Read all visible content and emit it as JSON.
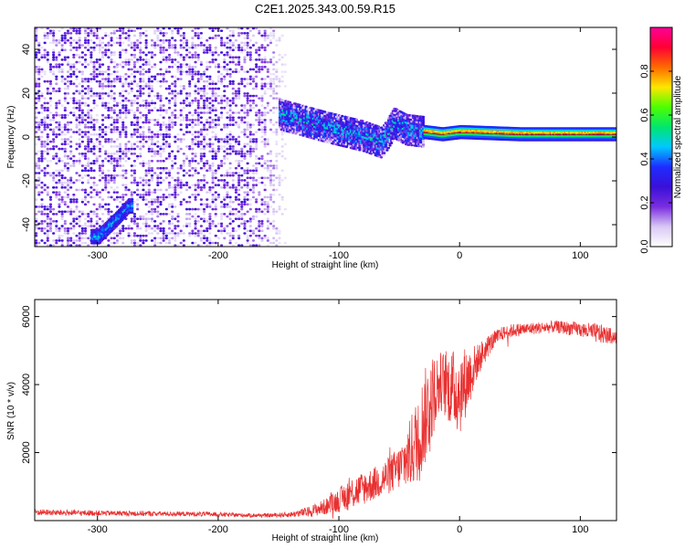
{
  "figure_title": "C2E1.2025.343.00.59.R15",
  "chart_data": [
    {
      "type": "heatmap",
      "title": "",
      "xlabel": "Height of straight line (km)",
      "ylabel": "Frequency (Hz)",
      "xlim": [
        -352,
        130
      ],
      "ylim": [
        -50,
        50
      ],
      "xticks": [
        -300,
        -200,
        -100,
        0,
        100
      ],
      "yticks": [
        -40,
        -20,
        0,
        20,
        40
      ],
      "colorbar": {
        "label": "Normalized spectral amplitude",
        "range": [
          0.0,
          1.0
        ],
        "ticks": [
          0.0,
          0.2,
          0.4,
          0.6,
          0.8
        ],
        "tick_labels": [
          "0.0",
          "0.2",
          "0.4",
          "0.6",
          "0.8"
        ],
        "colormap": [
          "#ffffff",
          "#d8c8f4",
          "#7a2de0",
          "#3a10d8",
          "#1e2cff",
          "#00c8ff",
          "#00e66e",
          "#4cff00",
          "#ffe600",
          "#ff6a00",
          "#ff0033",
          "#ff0099"
        ]
      },
      "features": [
        {
          "description": "broadband noise",
          "x_range": [
            -352,
            -140
          ],
          "freq_range": [
            -50,
            50
          ],
          "amplitude": 0.15
        },
        {
          "description": "signal track",
          "points": [
            [
              -150,
              10
            ],
            [
              -130,
              7
            ],
            [
              -110,
              4
            ],
            [
              -95,
              2
            ],
            [
              -80,
              0
            ],
            [
              -65,
              -3
            ],
            [
              -55,
              6
            ],
            [
              -45,
              3
            ],
            [
              -30,
              2
            ],
            [
              -15,
              1
            ],
            [
              0,
              2
            ],
            [
              50,
              1
            ],
            [
              100,
              1
            ],
            [
              130,
              1
            ]
          ]
        },
        {
          "description": "low-frequency blob",
          "points": [
            [
              -300,
              -46
            ],
            [
              -285,
              -38
            ],
            [
              -275,
              -32
            ]
          ]
        }
      ]
    },
    {
      "type": "line",
      "title": "",
      "xlabel": "Height of straight line (km)",
      "ylabel": "SNR (10 * v/v)",
      "xlim": [
        -352,
        130
      ],
      "ylim": [
        0,
        6500
      ],
      "xticks": [
        -300,
        -200,
        -100,
        0,
        100
      ],
      "yticks": [
        2000,
        4000,
        6000
      ],
      "series": [
        {
          "name": "SNR",
          "color": "#e83030",
          "x": [
            -352,
            -330,
            -300,
            -270,
            -240,
            -210,
            -180,
            -160,
            -140,
            -125,
            -110,
            -100,
            -90,
            -80,
            -70,
            -60,
            -50,
            -42,
            -35,
            -28,
            -22,
            -15,
            -8,
            0,
            8,
            15,
            25,
            35,
            45,
            60,
            80,
            100,
            115,
            130
          ],
          "baseline": [
            250,
            230,
            220,
            210,
            200,
            190,
            160,
            150,
            180,
            260,
            420,
            600,
            800,
            950,
            1100,
            1300,
            1550,
            1900,
            2400,
            3100,
            3700,
            4100,
            3900,
            3800,
            4250,
            4700,
            5200,
            5500,
            5600,
            5650,
            5700,
            5620,
            5500,
            5400
          ],
          "noise": [
            90,
            90,
            80,
            80,
            70,
            70,
            60,
            60,
            80,
            150,
            250,
            350,
            500,
            500,
            500,
            550,
            650,
            1000,
            1300,
            1450,
            1200,
            900,
            1100,
            1300,
            900,
            500,
            300,
            200,
            200,
            180,
            180,
            220,
            300,
            200
          ]
        }
      ]
    }
  ]
}
